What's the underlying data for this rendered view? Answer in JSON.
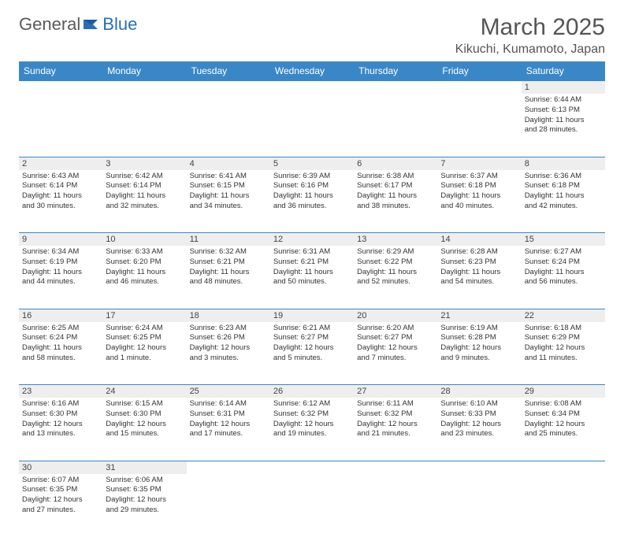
{
  "logo": {
    "text1": "General",
    "text2": "Blue"
  },
  "title": "March 2025",
  "location": "Kikuchi, Kumamoto, Japan",
  "colors": {
    "header_bg": "#3a87c7",
    "header_text": "#ffffff",
    "daynum_bg": "#eeeeee",
    "border": "#3a87c7",
    "text": "#333333",
    "logo_gray": "#5a5a5a",
    "logo_blue": "#2a6fb5"
  },
  "weekdays": [
    "Sunday",
    "Monday",
    "Tuesday",
    "Wednesday",
    "Thursday",
    "Friday",
    "Saturday"
  ],
  "weeks": [
    [
      null,
      null,
      null,
      null,
      null,
      null,
      {
        "d": "1",
        "sr": "Sunrise: 6:44 AM",
        "ss": "Sunset: 6:13 PM",
        "dl1": "Daylight: 11 hours",
        "dl2": "and 28 minutes."
      }
    ],
    [
      {
        "d": "2",
        "sr": "Sunrise: 6:43 AM",
        "ss": "Sunset: 6:14 PM",
        "dl1": "Daylight: 11 hours",
        "dl2": "and 30 minutes."
      },
      {
        "d": "3",
        "sr": "Sunrise: 6:42 AM",
        "ss": "Sunset: 6:14 PM",
        "dl1": "Daylight: 11 hours",
        "dl2": "and 32 minutes."
      },
      {
        "d": "4",
        "sr": "Sunrise: 6:41 AM",
        "ss": "Sunset: 6:15 PM",
        "dl1": "Daylight: 11 hours",
        "dl2": "and 34 minutes."
      },
      {
        "d": "5",
        "sr": "Sunrise: 6:39 AM",
        "ss": "Sunset: 6:16 PM",
        "dl1": "Daylight: 11 hours",
        "dl2": "and 36 minutes."
      },
      {
        "d": "6",
        "sr": "Sunrise: 6:38 AM",
        "ss": "Sunset: 6:17 PM",
        "dl1": "Daylight: 11 hours",
        "dl2": "and 38 minutes."
      },
      {
        "d": "7",
        "sr": "Sunrise: 6:37 AM",
        "ss": "Sunset: 6:18 PM",
        "dl1": "Daylight: 11 hours",
        "dl2": "and 40 minutes."
      },
      {
        "d": "8",
        "sr": "Sunrise: 6:36 AM",
        "ss": "Sunset: 6:18 PM",
        "dl1": "Daylight: 11 hours",
        "dl2": "and 42 minutes."
      }
    ],
    [
      {
        "d": "9",
        "sr": "Sunrise: 6:34 AM",
        "ss": "Sunset: 6:19 PM",
        "dl1": "Daylight: 11 hours",
        "dl2": "and 44 minutes."
      },
      {
        "d": "10",
        "sr": "Sunrise: 6:33 AM",
        "ss": "Sunset: 6:20 PM",
        "dl1": "Daylight: 11 hours",
        "dl2": "and 46 minutes."
      },
      {
        "d": "11",
        "sr": "Sunrise: 6:32 AM",
        "ss": "Sunset: 6:21 PM",
        "dl1": "Daylight: 11 hours",
        "dl2": "and 48 minutes."
      },
      {
        "d": "12",
        "sr": "Sunrise: 6:31 AM",
        "ss": "Sunset: 6:21 PM",
        "dl1": "Daylight: 11 hours",
        "dl2": "and 50 minutes."
      },
      {
        "d": "13",
        "sr": "Sunrise: 6:29 AM",
        "ss": "Sunset: 6:22 PM",
        "dl1": "Daylight: 11 hours",
        "dl2": "and 52 minutes."
      },
      {
        "d": "14",
        "sr": "Sunrise: 6:28 AM",
        "ss": "Sunset: 6:23 PM",
        "dl1": "Daylight: 11 hours",
        "dl2": "and 54 minutes."
      },
      {
        "d": "15",
        "sr": "Sunrise: 6:27 AM",
        "ss": "Sunset: 6:24 PM",
        "dl1": "Daylight: 11 hours",
        "dl2": "and 56 minutes."
      }
    ],
    [
      {
        "d": "16",
        "sr": "Sunrise: 6:25 AM",
        "ss": "Sunset: 6:24 PM",
        "dl1": "Daylight: 11 hours",
        "dl2": "and 58 minutes."
      },
      {
        "d": "17",
        "sr": "Sunrise: 6:24 AM",
        "ss": "Sunset: 6:25 PM",
        "dl1": "Daylight: 12 hours",
        "dl2": "and 1 minute."
      },
      {
        "d": "18",
        "sr": "Sunrise: 6:23 AM",
        "ss": "Sunset: 6:26 PM",
        "dl1": "Daylight: 12 hours",
        "dl2": "and 3 minutes."
      },
      {
        "d": "19",
        "sr": "Sunrise: 6:21 AM",
        "ss": "Sunset: 6:27 PM",
        "dl1": "Daylight: 12 hours",
        "dl2": "and 5 minutes."
      },
      {
        "d": "20",
        "sr": "Sunrise: 6:20 AM",
        "ss": "Sunset: 6:27 PM",
        "dl1": "Daylight: 12 hours",
        "dl2": "and 7 minutes."
      },
      {
        "d": "21",
        "sr": "Sunrise: 6:19 AM",
        "ss": "Sunset: 6:28 PM",
        "dl1": "Daylight: 12 hours",
        "dl2": "and 9 minutes."
      },
      {
        "d": "22",
        "sr": "Sunrise: 6:18 AM",
        "ss": "Sunset: 6:29 PM",
        "dl1": "Daylight: 12 hours",
        "dl2": "and 11 minutes."
      }
    ],
    [
      {
        "d": "23",
        "sr": "Sunrise: 6:16 AM",
        "ss": "Sunset: 6:30 PM",
        "dl1": "Daylight: 12 hours",
        "dl2": "and 13 minutes."
      },
      {
        "d": "24",
        "sr": "Sunrise: 6:15 AM",
        "ss": "Sunset: 6:30 PM",
        "dl1": "Daylight: 12 hours",
        "dl2": "and 15 minutes."
      },
      {
        "d": "25",
        "sr": "Sunrise: 6:14 AM",
        "ss": "Sunset: 6:31 PM",
        "dl1": "Daylight: 12 hours",
        "dl2": "and 17 minutes."
      },
      {
        "d": "26",
        "sr": "Sunrise: 6:12 AM",
        "ss": "Sunset: 6:32 PM",
        "dl1": "Daylight: 12 hours",
        "dl2": "and 19 minutes."
      },
      {
        "d": "27",
        "sr": "Sunrise: 6:11 AM",
        "ss": "Sunset: 6:32 PM",
        "dl1": "Daylight: 12 hours",
        "dl2": "and 21 minutes."
      },
      {
        "d": "28",
        "sr": "Sunrise: 6:10 AM",
        "ss": "Sunset: 6:33 PM",
        "dl1": "Daylight: 12 hours",
        "dl2": "and 23 minutes."
      },
      {
        "d": "29",
        "sr": "Sunrise: 6:08 AM",
        "ss": "Sunset: 6:34 PM",
        "dl1": "Daylight: 12 hours",
        "dl2": "and 25 minutes."
      }
    ],
    [
      {
        "d": "30",
        "sr": "Sunrise: 6:07 AM",
        "ss": "Sunset: 6:35 PM",
        "dl1": "Daylight: 12 hours",
        "dl2": "and 27 minutes."
      },
      {
        "d": "31",
        "sr": "Sunrise: 6:06 AM",
        "ss": "Sunset: 6:35 PM",
        "dl1": "Daylight: 12 hours",
        "dl2": "and 29 minutes."
      },
      null,
      null,
      null,
      null,
      null
    ]
  ]
}
